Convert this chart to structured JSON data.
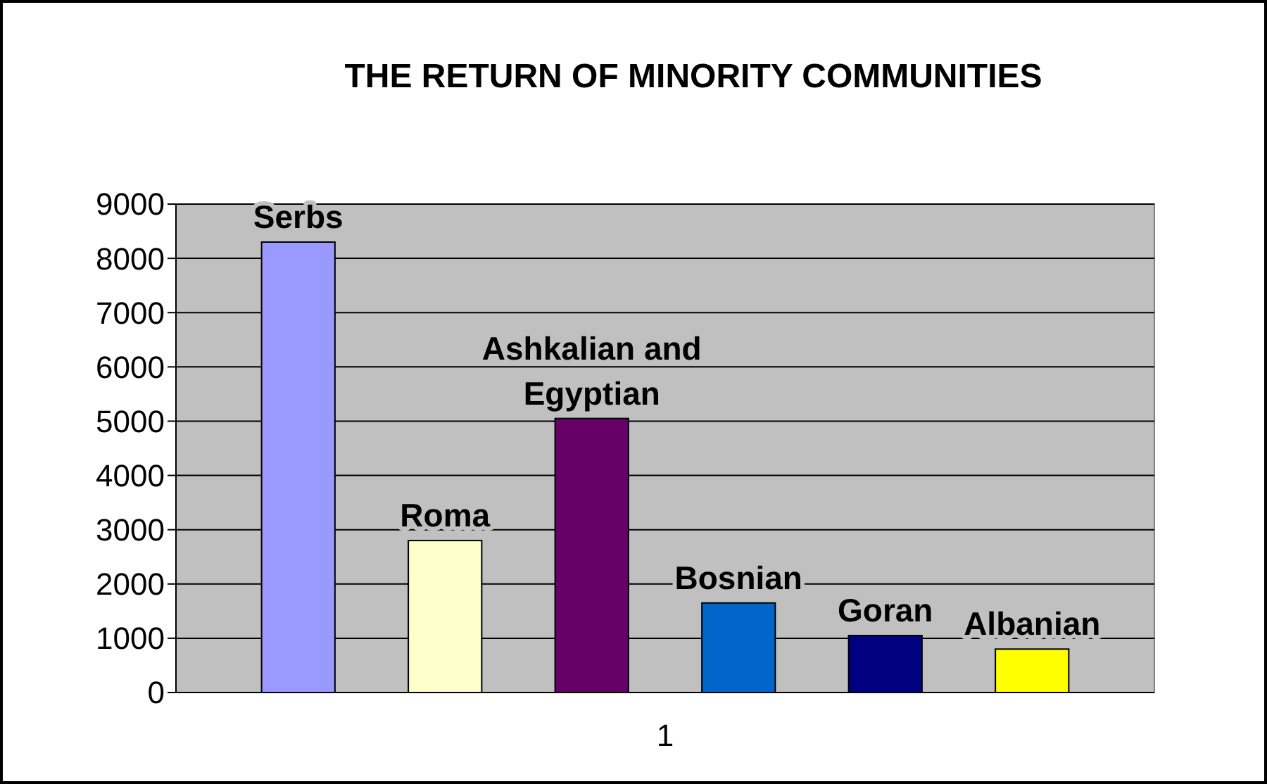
{
  "chart_data": {
    "type": "bar",
    "title": "THE RETURN OF MINORITY COMMUNITIES",
    "categories": [
      "1"
    ],
    "series": [
      {
        "name": "Serbs",
        "color": "#9999ff",
        "values": [
          8300
        ]
      },
      {
        "name": "Roma",
        "color": "#ffffcc",
        "values": [
          2800
        ]
      },
      {
        "name": "Ashkalian and Egyptian",
        "color": "#660066",
        "values": [
          5050
        ]
      },
      {
        "name": "Bosnian",
        "color": "#0066cc",
        "values": [
          1650
        ]
      },
      {
        "name": "Goran",
        "color": "#000080",
        "values": [
          1050
        ]
      },
      {
        "name": "Albanian",
        "color": "#ffff00",
        "values": [
          800
        ]
      }
    ],
    "ylim": [
      0,
      9000
    ],
    "yticks": [
      0,
      1000,
      2000,
      3000,
      4000,
      5000,
      6000,
      7000,
      8000,
      9000
    ],
    "grid": "y"
  }
}
